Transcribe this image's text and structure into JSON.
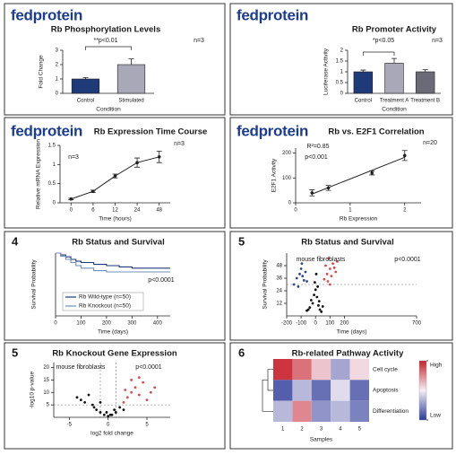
{
  "chart_data": [
    {
      "type": "bar",
      "logo": "fedprotein",
      "title": "Rb Phosphorylation Levels",
      "categories": [
        "Control",
        "Stimulated"
      ],
      "values": [
        1.0,
        2.0
      ],
      "errors": [
        0.1,
        0.4
      ],
      "colors": [
        "#1e3a78",
        "#a8a8b8"
      ],
      "ylim": [
        0,
        3
      ],
      "yticks": [
        0,
        1,
        2,
        3
      ],
      "ylabel": "Fold Change",
      "xlabel": "Condition",
      "annotations": [
        "**p<0.01",
        "n=3"
      ]
    },
    {
      "type": "bar",
      "logo": "fedprotein",
      "title": "Rb Promoter Activity",
      "categories": [
        "Control",
        "Treatment A",
        "Treatment B"
      ],
      "values": [
        1.0,
        1.4,
        1.0
      ],
      "errors": [
        0.08,
        0.22,
        0.1
      ],
      "colors": [
        "#1e3a78",
        "#a8a8b8",
        "#6b6b78"
      ],
      "ylim": [
        0,
        2
      ],
      "yticks": [
        0,
        0.5,
        1,
        1.5,
        2
      ],
      "ylabel": "Luciferase Activity",
      "xlabel": "Condition",
      "annotations": [
        "*p<0.05",
        "n=3"
      ]
    },
    {
      "type": "line",
      "logo": "fedprotein",
      "title": "Rb Expression Time Course",
      "categories": [
        "0",
        "6",
        "12",
        "24",
        "48"
      ],
      "values": [
        0.1,
        0.3,
        0.7,
        1.05,
        1.2
      ],
      "errors": [
        0.02,
        0.03,
        0.05,
        0.12,
        0.15
      ],
      "color": "#222222",
      "ylim": [
        0,
        1.5
      ],
      "yticks": [
        0,
        0.5,
        1,
        1.5
      ],
      "ylabel": "Relative mRNA Expression",
      "xlabel": "Time (hours)",
      "annotations": [
        "n=3",
        "n=3"
      ]
    },
    {
      "type": "scatter",
      "logo": "fedprotein",
      "title": "Rb vs. E2F1 Correlation",
      "x": [
        0.3,
        0.6,
        1.4,
        2.0
      ],
      "values": [
        40,
        60,
        120,
        190
      ],
      "errors": [
        12,
        10,
        8,
        20
      ],
      "color": "#222222",
      "trendline": true,
      "xlim": [
        0,
        2.3
      ],
      "xticks": [
        0,
        1,
        2
      ],
      "ylim": [
        0,
        220
      ],
      "yticks": [
        0,
        100,
        200
      ],
      "ylabel": "E2F1 Activity",
      "xlabel": "Rb Expression",
      "annotations": [
        "R²=0.85",
        "p<0.001",
        "n=20"
      ]
    },
    {
      "type": "step",
      "panel_label": "4",
      "title": "Rb Status and Survival",
      "series": [
        {
          "name": "Rb Wild-type (n=50)",
          "color": "#1e3a78",
          "x": [
            0,
            20,
            40,
            60,
            80,
            100,
            150,
            200,
            250,
            300,
            350,
            450
          ],
          "values": [
            1,
            0.97,
            0.94,
            0.9,
            0.87,
            0.85,
            0.82,
            0.8,
            0.78,
            0.76,
            0.76,
            0.76
          ]
        },
        {
          "name": "Rb Knockout (n=50)",
          "color": "#6f8fb8",
          "x": [
            0,
            20,
            40,
            60,
            80,
            100,
            150,
            200,
            250,
            300,
            350,
            450
          ],
          "values": [
            1,
            0.95,
            0.9,
            0.85,
            0.8,
            0.76,
            0.72,
            0.7,
            0.7,
            0.7,
            0.7,
            0.7
          ]
        }
      ],
      "xlim": [
        0,
        450
      ],
      "xticks": [
        0,
        100,
        200,
        300,
        400
      ],
      "ylim": [
        0,
        1
      ],
      "yticks": [],
      "ylabel": "Survival Probability",
      "xlabel": "Time (days)",
      "annotations": [
        "p<0.0001"
      ]
    },
    {
      "type": "scatter",
      "panel_label": "5",
      "title": "Rb Status and Survival",
      "series": [
        {
          "color": "#111111",
          "x": [
            -60,
            -40,
            -20,
            -10,
            0,
            10,
            20,
            30,
            40,
            -30,
            -5,
            15,
            25,
            50,
            -50,
            5
          ],
          "values": [
            5,
            8,
            12,
            20,
            25,
            18,
            10,
            6,
            4,
            15,
            32,
            28,
            14,
            9,
            6,
            40
          ]
        },
        {
          "color": "#2b4a8c",
          "x": [
            -150,
            -130,
            -110,
            -100,
            -90,
            -80,
            -120,
            -70,
            -95,
            -60
          ],
          "values": [
            30,
            36,
            40,
            45,
            38,
            34,
            28,
            42,
            50,
            33
          ]
        },
        {
          "color": "#d94a4a",
          "x": [
            60,
            80,
            100,
            120,
            140,
            90,
            110,
            70,
            130,
            150,
            100,
            85
          ],
          "values": [
            35,
            40,
            45,
            50,
            42,
            55,
            38,
            48,
            46,
            52,
            30,
            33
          ]
        }
      ],
      "threshold": 30,
      "xlim": [
        -200,
        700
      ],
      "xticks": [
        -200,
        -100,
        0,
        100,
        200,
        700
      ],
      "ylim": [
        0,
        60
      ],
      "yticks": [
        12,
        24,
        36,
        48
      ],
      "ylabel": "Survival Probability",
      "xlabel": "Time (days)",
      "annotations": [
        "mouse fibroblasts",
        "p<0.0001"
      ]
    },
    {
      "type": "scatter",
      "panel_label": "5",
      "title": "Rb Knockout Gene Expression",
      "series": [
        {
          "color": "#111111",
          "x": [
            -4,
            -3,
            -2,
            -1.5,
            -1,
            -0.5,
            0,
            0.5,
            1,
            1.5,
            2,
            -2.5,
            -3.5,
            -1,
            0.3,
            -0.2,
            0.8,
            -1.8
          ],
          "values": [
            8,
            6,
            5,
            3,
            2,
            1,
            0.5,
            1,
            2,
            4,
            3,
            9,
            7,
            6,
            1,
            2,
            3,
            4
          ]
        },
        {
          "color": "#d94a4a",
          "x": [
            2,
            2.5,
            3,
            3.5,
            4,
            4.5,
            5,
            3,
            2.2,
            4,
            5.5,
            6
          ],
          "values": [
            6,
            8,
            10,
            12,
            9,
            14,
            7,
            15,
            11,
            16,
            10,
            12
          ]
        }
      ],
      "threshold": 5,
      "vlines": [
        -1,
        1
      ],
      "xlim": [
        -7,
        8
      ],
      "xticks": [
        -5,
        0,
        5
      ],
      "ylim": [
        0,
        22
      ],
      "yticks": [
        5,
        10,
        15,
        20
      ],
      "ylabel": "-log10 p-value",
      "xlabel": "log2 fold change",
      "annotations": [
        "mouse fibroblasts",
        "p<0.0001"
      ]
    },
    {
      "type": "heatmap",
      "panel_label": "6",
      "title": "Rb-related Pathway Activity",
      "rows": [
        "Cell cycle",
        "Apoptosis",
        "Differentiation"
      ],
      "columns": [
        1,
        2,
        3,
        4,
        5
      ],
      "values": [
        [
          0.9,
          0.6,
          0.2,
          -0.4,
          0.1
        ],
        [
          -0.8,
          -0.3,
          -0.7,
          -0.1,
          -0.7
        ],
        [
          -0.3,
          0.5,
          -0.5,
          -0.3,
          -0.6
        ]
      ],
      "vlim": [
        -1,
        1
      ],
      "cbar_ticks": [
        {
          "value": 1,
          "label": "High"
        },
        {
          "value": -1,
          "label": "Low"
        }
      ],
      "xlabel": "Samples"
    }
  ]
}
